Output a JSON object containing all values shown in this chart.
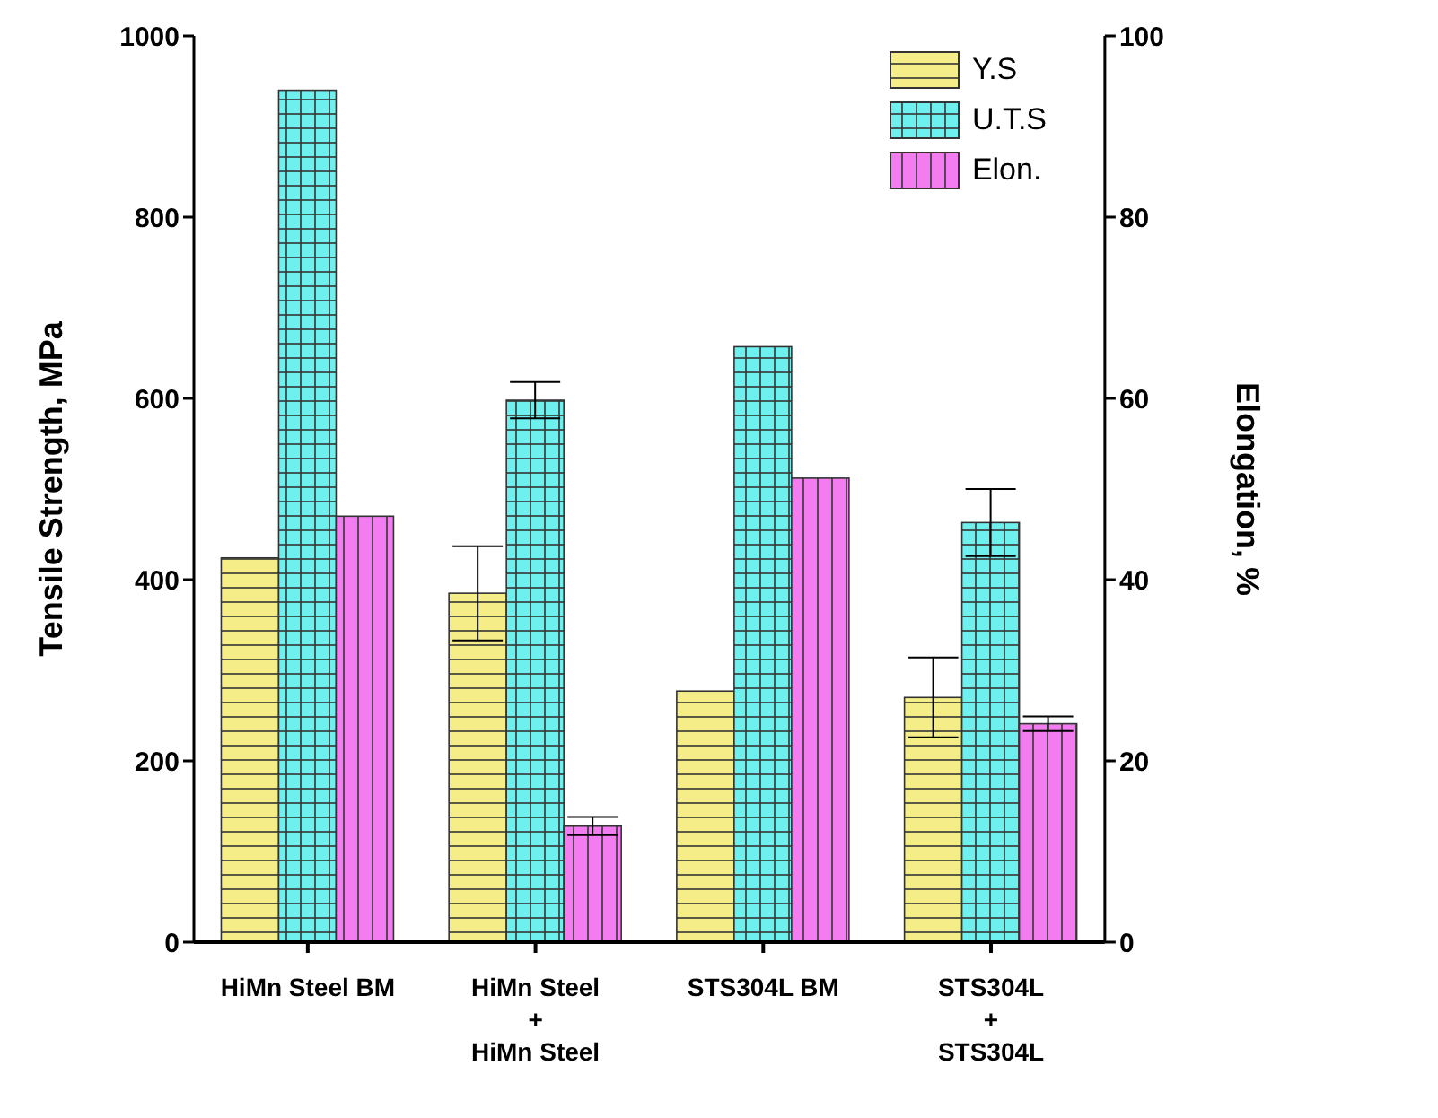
{
  "chart_data": {
    "type": "bar",
    "categories": [
      "HiMn Steel BM",
      "HiMn Steel\n+\nHiMn Steel",
      "STS304L BM",
      "STS304L\n+\nSTS304L"
    ],
    "ylabel": "Tensile Strength, MPa",
    "y2label": "Elongation, %",
    "ylim": [
      0,
      1000
    ],
    "yticks": [
      0,
      200,
      400,
      600,
      800,
      1000
    ],
    "y2lim": [
      0,
      100
    ],
    "y2ticks": [
      0,
      20,
      40,
      60,
      80,
      100
    ],
    "series": [
      {
        "name": "Y.S",
        "color": "#f5ee88",
        "values": [
          424,
          385,
          277,
          270
        ],
        "errors": [
          null,
          52,
          null,
          44
        ]
      },
      {
        "name": "U.T.S",
        "color": "#6ef0ee",
        "values": [
          940,
          598,
          657,
          463
        ],
        "errors": [
          null,
          20,
          null,
          37
        ]
      },
      {
        "name": "Elon.",
        "color": "#f27cf0",
        "values": [
          47,
          12.8,
          51.2,
          24.1
        ],
        "errors": [
          null,
          1,
          null,
          0.8
        ],
        "axis": "y2"
      }
    ],
    "legend": "top right"
  }
}
